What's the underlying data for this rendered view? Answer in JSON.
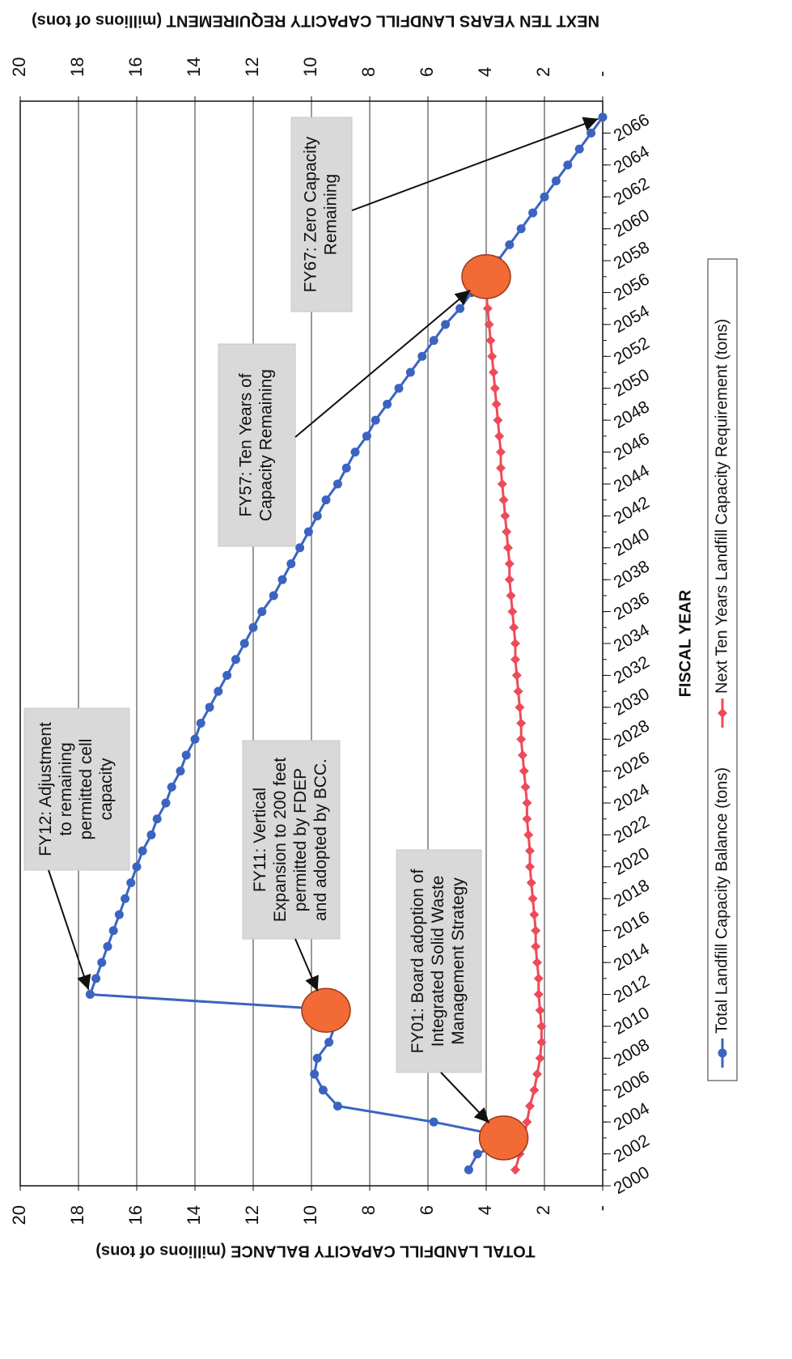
{
  "chart_data": {
    "type": "line",
    "x_label": "FISCAL YEAR",
    "y_label": "TOTAL LANDFILL CAPACITY BALANCE (millions of tons)",
    "y2_label": "NEXT TEN YEARS LANDFILL CAPACITY REQUIREMENT (millions of tons)",
    "x": [
      2001,
      2002,
      2003,
      2004,
      2005,
      2006,
      2007,
      2008,
      2009,
      2010,
      2011,
      2012,
      2013,
      2014,
      2015,
      2016,
      2017,
      2018,
      2019,
      2020,
      2021,
      2022,
      2023,
      2024,
      2025,
      2026,
      2027,
      2028,
      2029,
      2030,
      2031,
      2032,
      2033,
      2034,
      2035,
      2036,
      2037,
      2038,
      2039,
      2040,
      2041,
      2042,
      2043,
      2044,
      2045,
      2046,
      2047,
      2048,
      2049,
      2050,
      2051,
      2052,
      2053,
      2054,
      2055,
      2056,
      2057,
      2058,
      2059,
      2060,
      2061,
      2062,
      2063,
      2064,
      2065,
      2066,
      2067
    ],
    "series": [
      {
        "name": "Total Landfill Capacity Balance (tons)",
        "color": "#3a64c0",
        "marker": "circle",
        "values": [
          4.6,
          4.3,
          3.1,
          5.8,
          9.1,
          9.6,
          9.9,
          9.8,
          9.4,
          9.2,
          8.9,
          17.6,
          17.4,
          17.2,
          17.0,
          16.8,
          16.6,
          16.4,
          16.2,
          16.0,
          15.8,
          15.5,
          15.3,
          15.0,
          14.8,
          14.5,
          14.3,
          14.0,
          13.8,
          13.5,
          13.2,
          12.9,
          12.6,
          12.3,
          12.0,
          11.7,
          11.3,
          11.0,
          10.7,
          10.4,
          10.1,
          9.8,
          9.5,
          9.1,
          8.8,
          8.5,
          8.1,
          7.8,
          7.4,
          7.0,
          6.6,
          6.2,
          5.8,
          5.4,
          4.9,
          4.5,
          4.0,
          3.6,
          3.2,
          2.8,
          2.4,
          2.0,
          1.6,
          1.2,
          0.8,
          0.4,
          0.0
        ]
      },
      {
        "name": "Next Ten Years Landfill Capacity Requirement (tons)",
        "color": "#ee4a5a",
        "marker": "diamond",
        "axis": "y2",
        "values": [
          3.0,
          2.85,
          2.7,
          2.6,
          2.5,
          2.35,
          2.25,
          2.15,
          2.1,
          2.1,
          2.15,
          2.2,
          2.2,
          2.25,
          2.3,
          2.3,
          2.35,
          2.4,
          2.45,
          2.5,
          2.5,
          2.55,
          2.6,
          2.6,
          2.65,
          2.7,
          2.75,
          2.8,
          2.8,
          2.85,
          2.9,
          2.95,
          3.0,
          3.0,
          3.05,
          3.1,
          3.15,
          3.2,
          3.2,
          3.25,
          3.3,
          3.35,
          3.4,
          3.45,
          3.5,
          3.5,
          3.55,
          3.6,
          3.65,
          3.7,
          3.75,
          3.8,
          3.85,
          3.9,
          3.95,
          4.0,
          4.05,
          null,
          null,
          null,
          null,
          null,
          null,
          null,
          null,
          null,
          null
        ]
      }
    ],
    "xlim": [
      2000,
      2068
    ],
    "xticks": [
      2000,
      2002,
      2004,
      2006,
      2008,
      2010,
      2012,
      2014,
      2016,
      2018,
      2020,
      2022,
      2024,
      2026,
      2028,
      2030,
      2032,
      2034,
      2036,
      2038,
      2040,
      2042,
      2044,
      2046,
      2048,
      2050,
      2052,
      2054,
      2056,
      2058,
      2060,
      2062,
      2064,
      2066
    ],
    "ylim": [
      0,
      20
    ],
    "yticks": [
      {
        "value": 0,
        "label": "-"
      },
      2,
      4,
      6,
      8,
      10,
      12,
      14,
      16,
      18,
      20
    ],
    "y2lim": [
      0,
      20
    ],
    "y2ticks": [
      {
        "value": 0,
        "label": "-"
      },
      2,
      4,
      6,
      8,
      10,
      12,
      14,
      16,
      18,
      20
    ],
    "grid": true,
    "legend": "bottom",
    "annotations": [
      {
        "text": [
          "FY12: Adjustment",
          "to remaining",
          "permitted cell",
          "capacity"
        ],
        "x": 2012,
        "y": 17.6,
        "marker": false
      },
      {
        "text": [
          "FY11: Vertical",
          "Expansion to 200 feet",
          "permitted by FDEP",
          "and adopted by BCC."
        ],
        "x": 2011,
        "y": 9.5,
        "marker": true
      },
      {
        "text": [
          "FY01: Board adoption of",
          "Integrated Solid Waste",
          "Management Strategy"
        ],
        "x": 2003,
        "y": 3.4,
        "marker": true
      },
      {
        "text": [
          "FY57: Ten Years of",
          "Capacity Remaining"
        ],
        "x": 2057,
        "y": 4.0,
        "marker": true
      },
      {
        "text": [
          "FY67: Zero Capacity",
          "Remaining"
        ],
        "x": 2067,
        "y": 0.0,
        "marker": false
      }
    ]
  }
}
